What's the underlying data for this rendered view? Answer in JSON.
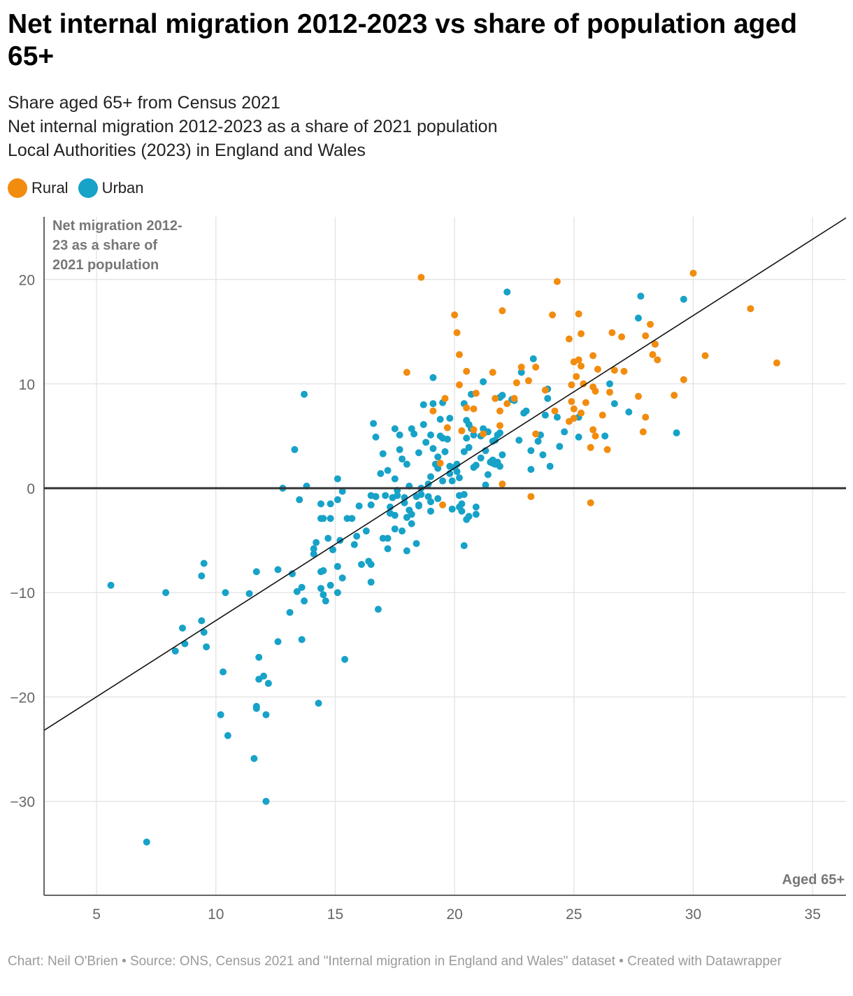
{
  "title": "Net internal migration 2012-2023 vs share of population aged 65+",
  "subtitle": [
    "Share aged 65+ from Census 2021",
    "Net internal migration 2012-2023 as a share of 2021 population",
    "Local Authorities (2023) in England and Wales"
  ],
  "legend": [
    {
      "label": "Rural",
      "color": "#f28c0f"
    },
    {
      "label": "Urban",
      "color": "#17a2c8"
    }
  ],
  "footer": "Chart: Neil O'Brien • Source: ONS, Census 2021 and \"Internal migration in England and Wales\" dataset  • Created with Datawrapper",
  "chart_data": {
    "type": "scatter",
    "title": "Net internal migration 2012-2023 vs share of population aged 65+",
    "ylabel_lines": [
      "Net migration 2012-",
      "23 as a share of",
      "2021 population"
    ],
    "xlabel": "Aged 65+",
    "xlim": [
      2.8,
      36.4
    ],
    "ylim": [
      -39,
      26
    ],
    "x_ticks": [
      5,
      10,
      15,
      20,
      25,
      30,
      35
    ],
    "y_ticks": [
      20,
      10,
      0,
      -10,
      -20,
      -30
    ],
    "y_tick_labels": [
      "20",
      "10",
      "0",
      "−10",
      "−20",
      "−30"
    ],
    "grid": true,
    "zero_line": true,
    "trendline": {
      "x": [
        2.8,
        36.4
      ],
      "y": [
        -23.2,
        25.9
      ]
    },
    "series": [
      {
        "name": "Urban",
        "color": "#17a2c8",
        "points": [
          [
            5.6,
            -9.3
          ],
          [
            7.1,
            -33.9
          ],
          [
            7.9,
            -10
          ],
          [
            8.3,
            -15.6
          ],
          [
            8.6,
            -13.4
          ],
          [
            8.7,
            -14.9
          ],
          [
            9.4,
            -12.7
          ],
          [
            9.4,
            -8.4
          ],
          [
            9.5,
            -13.8
          ],
          [
            9.5,
            -7.2
          ],
          [
            9.6,
            -15.2
          ],
          [
            10.2,
            -21.7
          ],
          [
            10.3,
            -17.6
          ],
          [
            10.4,
            -10
          ],
          [
            10.5,
            -23.7
          ],
          [
            11.4,
            -10.1
          ],
          [
            11.6,
            -25.9
          ],
          [
            11.7,
            -20.9
          ],
          [
            11.7,
            -21.1
          ],
          [
            11.7,
            -8
          ],
          [
            11.8,
            -16.2
          ],
          [
            11.8,
            -18.3
          ],
          [
            12,
            -18
          ],
          [
            12.1,
            -21.7
          ],
          [
            12.1,
            -30
          ],
          [
            12.2,
            -18.7
          ],
          [
            12.6,
            -14.7
          ],
          [
            12.6,
            -7.8
          ],
          [
            12.8,
            0
          ],
          [
            13.1,
            -11.9
          ],
          [
            13.2,
            -8.2
          ],
          [
            13.3,
            3.7
          ],
          [
            13.4,
            -9.9
          ],
          [
            13.5,
            -1.1
          ],
          [
            13.6,
            -14.5
          ],
          [
            13.6,
            -9.5
          ],
          [
            13.7,
            9
          ],
          [
            13.7,
            -10.8
          ],
          [
            13.8,
            0.2
          ],
          [
            14.1,
            -6.3
          ],
          [
            14.1,
            -5.8
          ],
          [
            14.2,
            -5.2
          ],
          [
            14.3,
            -20.6
          ],
          [
            14.4,
            -1.5
          ],
          [
            14.4,
            -2.9
          ],
          [
            14.4,
            -9.6
          ],
          [
            14.4,
            -8
          ],
          [
            14.5,
            -7.9
          ],
          [
            14.5,
            -10.2
          ],
          [
            14.5,
            -2.9
          ],
          [
            14.6,
            -10.8
          ],
          [
            14.7,
            -4.8
          ],
          [
            14.8,
            -9.3
          ],
          [
            14.8,
            -1.5
          ],
          [
            14.8,
            -2.9
          ],
          [
            14.9,
            -5.9
          ],
          [
            15.1,
            -1.1
          ],
          [
            15.1,
            0.9
          ],
          [
            15.1,
            -10
          ],
          [
            15.1,
            -7.5
          ],
          [
            15.2,
            -5
          ],
          [
            15.3,
            -8.6
          ],
          [
            15.3,
            -0.3
          ],
          [
            15.4,
            -16.4
          ],
          [
            15.5,
            -2.9
          ],
          [
            15.7,
            -2.9
          ],
          [
            15.8,
            -5.4
          ],
          [
            15.9,
            -4.6
          ],
          [
            16,
            -1.7
          ],
          [
            16.1,
            -7.3
          ],
          [
            16.3,
            -4.1
          ],
          [
            16.4,
            -7
          ],
          [
            16.5,
            -0.7
          ],
          [
            16.5,
            -1.6
          ],
          [
            16.5,
            -9
          ],
          [
            16.5,
            -7.3
          ],
          [
            16.6,
            6.2
          ],
          [
            16.7,
            -0.8
          ],
          [
            16.7,
            4.9
          ],
          [
            16.7,
            -0.8
          ],
          [
            16.8,
            -11.6
          ],
          [
            16.9,
            1.4
          ],
          [
            17,
            -4.8
          ],
          [
            17,
            3.3
          ],
          [
            17.1,
            -0.7
          ],
          [
            17.2,
            -5.8
          ],
          [
            17.2,
            -4.8
          ],
          [
            17.2,
            1.7
          ],
          [
            17.3,
            -2.4
          ],
          [
            17.3,
            -1.8
          ],
          [
            17.4,
            -0.9
          ],
          [
            17.5,
            5.7
          ],
          [
            17.5,
            0.9
          ],
          [
            17.5,
            -3.9
          ],
          [
            17.5,
            -2.6
          ],
          [
            17.6,
            -0.2
          ],
          [
            17.6,
            -0.7
          ],
          [
            17.7,
            5.1
          ],
          [
            17.7,
            3.7
          ],
          [
            17.8,
            -4.1
          ],
          [
            17.8,
            2.8
          ],
          [
            17.9,
            -1.4
          ],
          [
            17.9,
            -0.9
          ],
          [
            18,
            -2.8
          ],
          [
            18,
            -6
          ],
          [
            18,
            2.3
          ],
          [
            18.2,
            5.7
          ],
          [
            18.1,
            -2.1
          ],
          [
            18.1,
            0.2
          ],
          [
            18.2,
            -3.4
          ],
          [
            18.2,
            -2.5
          ],
          [
            18.3,
            5.2
          ],
          [
            18.4,
            -0.8
          ],
          [
            18.4,
            -5.3
          ],
          [
            18.5,
            -1.6
          ],
          [
            18.5,
            3.4
          ],
          [
            18.5,
            -1.7
          ],
          [
            18.6,
            -0.6
          ],
          [
            18.6,
            0
          ],
          [
            18.7,
            8
          ],
          [
            18.7,
            6.1
          ],
          [
            18.8,
            4.4
          ],
          [
            18.9,
            0.4
          ],
          [
            18.9,
            -0.8
          ],
          [
            19,
            -2.2
          ],
          [
            19,
            -1.3
          ],
          [
            19,
            1.1
          ],
          [
            19,
            5.1
          ],
          [
            19.1,
            8.1
          ],
          [
            19.1,
            10.6
          ],
          [
            19.1,
            3.8
          ],
          [
            19.2,
            2.3
          ],
          [
            19.3,
            3
          ],
          [
            19.3,
            1.9
          ],
          [
            19.3,
            -1
          ],
          [
            19.4,
            6.6
          ],
          [
            19.4,
            5
          ],
          [
            19.5,
            8.2
          ],
          [
            19.5,
            0.7
          ],
          [
            19.5,
            4.8
          ],
          [
            19.6,
            3.5
          ],
          [
            19.7,
            4.7
          ],
          [
            19.8,
            1.4
          ],
          [
            19.8,
            6.7
          ],
          [
            19.8,
            2.1
          ],
          [
            19.9,
            0.7
          ],
          [
            19.9,
            -2
          ],
          [
            20,
            2
          ],
          [
            20.1,
            2.3
          ],
          [
            20.1,
            1.6
          ],
          [
            20.2,
            1
          ],
          [
            20.2,
            -0.7
          ],
          [
            20.2,
            -1.8
          ],
          [
            20.3,
            -2.2
          ],
          [
            20.3,
            -1.5
          ],
          [
            20.4,
            -5.5
          ],
          [
            20.4,
            -0.6
          ],
          [
            20.4,
            3.5
          ],
          [
            20.4,
            8.1
          ],
          [
            20.5,
            4.8
          ],
          [
            20.5,
            -3
          ],
          [
            20.5,
            6.5
          ],
          [
            20.6,
            3.9
          ],
          [
            20.6,
            -2.7
          ],
          [
            20.6,
            6.1
          ],
          [
            20.7,
            5.7
          ],
          [
            20.7,
            9
          ],
          [
            20.8,
            2
          ],
          [
            20.8,
            5.1
          ],
          [
            20.9,
            -1.8
          ],
          [
            20.9,
            2.2
          ],
          [
            20.9,
            -2.5
          ],
          [
            21.1,
            2.9
          ],
          [
            21.1,
            5
          ],
          [
            21.2,
            10.2
          ],
          [
            21.2,
            5.7
          ],
          [
            21.3,
            3.6
          ],
          [
            21.3,
            0.3
          ],
          [
            21.4,
            5.4
          ],
          [
            21.4,
            1.3
          ],
          [
            21.5,
            2.5
          ],
          [
            21.6,
            2.4
          ],
          [
            21.6,
            4.5
          ],
          [
            21.6,
            2.7
          ],
          [
            21.7,
            4.6
          ],
          [
            21.7,
            2.3
          ],
          [
            21.8,
            5.1
          ],
          [
            21.8,
            2.5
          ],
          [
            21.9,
            2.1
          ],
          [
            21.9,
            8.7
          ],
          [
            21.9,
            5.3
          ],
          [
            22,
            3.2
          ],
          [
            22,
            8.9
          ],
          [
            22.2,
            18.8
          ],
          [
            22.4,
            8.5
          ],
          [
            22.5,
            8.4
          ],
          [
            22.7,
            4.6
          ],
          [
            22.8,
            11.1
          ],
          [
            22.9,
            7.2
          ],
          [
            23,
            7.4
          ],
          [
            23.2,
            3.6
          ],
          [
            23.2,
            1.8
          ],
          [
            23.3,
            12.4
          ],
          [
            23.5,
            4.5
          ],
          [
            23.6,
            5.1
          ],
          [
            23.7,
            3.2
          ],
          [
            23.8,
            7
          ],
          [
            23.9,
            9.5
          ],
          [
            23.9,
            8.6
          ],
          [
            24,
            2.1
          ],
          [
            24.3,
            6.8
          ],
          [
            24.4,
            4
          ],
          [
            24.6,
            5.4
          ],
          [
            25.2,
            4.9
          ],
          [
            25.2,
            6.8
          ],
          [
            26.3,
            5
          ],
          [
            26.5,
            10
          ],
          [
            26.7,
            8.1
          ],
          [
            27.3,
            7.3
          ],
          [
            27.7,
            16.3
          ],
          [
            27.8,
            18.4
          ],
          [
            28.4,
            13.8
          ],
          [
            29.3,
            5.3
          ],
          [
            29.6,
            18.1
          ]
        ]
      },
      {
        "name": "Rural",
        "color": "#f28c0f",
        "points": [
          [
            18,
            11.1
          ],
          [
            18.6,
            20.2
          ],
          [
            19.1,
            7.4
          ],
          [
            19.4,
            2.4
          ],
          [
            19.5,
            -1.6
          ],
          [
            19.6,
            8.6
          ],
          [
            19.7,
            5.8
          ],
          [
            20,
            16.6
          ],
          [
            20.1,
            14.9
          ],
          [
            20.2,
            9.9
          ],
          [
            20.2,
            12.8
          ],
          [
            20.3,
            5.5
          ],
          [
            20.5,
            7.7
          ],
          [
            20.5,
            11.2
          ],
          [
            20.8,
            7.6
          ],
          [
            20.8,
            5.6
          ],
          [
            20.9,
            9.1
          ],
          [
            21.2,
            5.2
          ],
          [
            21.6,
            11.1
          ],
          [
            21.7,
            8.6
          ],
          [
            21.9,
            7.4
          ],
          [
            21.9,
            6
          ],
          [
            22,
            0.4
          ],
          [
            22,
            17
          ],
          [
            22.2,
            8.1
          ],
          [
            22.5,
            8.6
          ],
          [
            22.6,
            10.1
          ],
          [
            22.8,
            11.6
          ],
          [
            23.1,
            10.3
          ],
          [
            23.2,
            -0.8
          ],
          [
            23.4,
            11.6
          ],
          [
            23.4,
            5.2
          ],
          [
            23.8,
            9.4
          ],
          [
            24.1,
            16.6
          ],
          [
            24.2,
            7.4
          ],
          [
            24.3,
            19.8
          ],
          [
            24.8,
            6.4
          ],
          [
            24.8,
            14.3
          ],
          [
            24.9,
            8.3
          ],
          [
            24.9,
            9.9
          ],
          [
            25,
            12.1
          ],
          [
            25,
            6.7
          ],
          [
            25,
            7.6
          ],
          [
            25.1,
            10.7
          ],
          [
            25.2,
            16.7
          ],
          [
            25.2,
            12.3
          ],
          [
            25.3,
            14.8
          ],
          [
            25.3,
            11.7
          ],
          [
            25.3,
            7.2
          ],
          [
            25.4,
            10
          ],
          [
            25.5,
            8.2
          ],
          [
            25.7,
            -1.4
          ],
          [
            25.7,
            3.9
          ],
          [
            25.8,
            9.7
          ],
          [
            25.8,
            12.7
          ],
          [
            25.8,
            5.6
          ],
          [
            25.9,
            5
          ],
          [
            25.9,
            9.3
          ],
          [
            26,
            11.4
          ],
          [
            26.2,
            7
          ],
          [
            26.4,
            3.7
          ],
          [
            26.5,
            9.2
          ],
          [
            26.6,
            14.9
          ],
          [
            26.7,
            11.3
          ],
          [
            27,
            14.5
          ],
          [
            27.1,
            11.2
          ],
          [
            27.7,
            8.8
          ],
          [
            27.9,
            5.4
          ],
          [
            28,
            6.8
          ],
          [
            28,
            14.6
          ],
          [
            28.2,
            15.7
          ],
          [
            28.3,
            12.8
          ],
          [
            28.4,
            13.8
          ],
          [
            28.5,
            12.3
          ],
          [
            29.2,
            8.9
          ],
          [
            29.6,
            10.4
          ],
          [
            30,
            20.6
          ],
          [
            30.5,
            12.7
          ],
          [
            32.4,
            17.2
          ],
          [
            33.5,
            12
          ]
        ]
      }
    ]
  }
}
